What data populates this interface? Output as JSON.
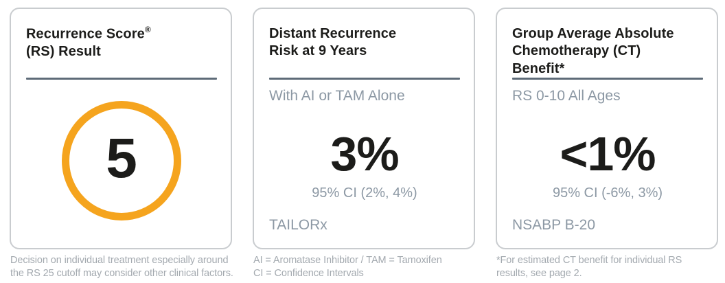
{
  "colors": {
    "accent_ring_orange": "#F5A41E",
    "divider_slate": "#5E6B78",
    "muted_blue_gray_text": "#8C98A4",
    "footnote_gray_text": "#A3A9AF",
    "title_text": "#1C1C1A",
    "card_border": "#C9CCCF",
    "background": "#FFFFFF"
  },
  "cards": [
    {
      "title_line1": "Recurrence Score",
      "title_reg": "®",
      "title_line2": "(RS) Result",
      "score": "5",
      "footnote": "Decision on individual treatment especially around\nthe RS 25 cutoff may consider other clinical factors."
    },
    {
      "title": "Distant Recurrence\nRisk at 9 Years",
      "subtitle": "With AI or TAM Alone",
      "value": "3%",
      "ci": "95% CI (2%, 4%)",
      "study": "TAILORx",
      "footnote": "AI = Aromatase Inhibitor / TAM = Tamoxifen\nCI = Confidence Intervals"
    },
    {
      "title": "Group Average Absolute\nChemotherapy (CT)\nBenefit*",
      "subtitle": "RS 0-10 All Ages",
      "value": "<1%",
      "ci": "95% CI (-6%, 3%)",
      "study": "NSABP B-20",
      "footnote": "*For estimated CT benefit for individual RS\nresults, see page 2."
    }
  ]
}
